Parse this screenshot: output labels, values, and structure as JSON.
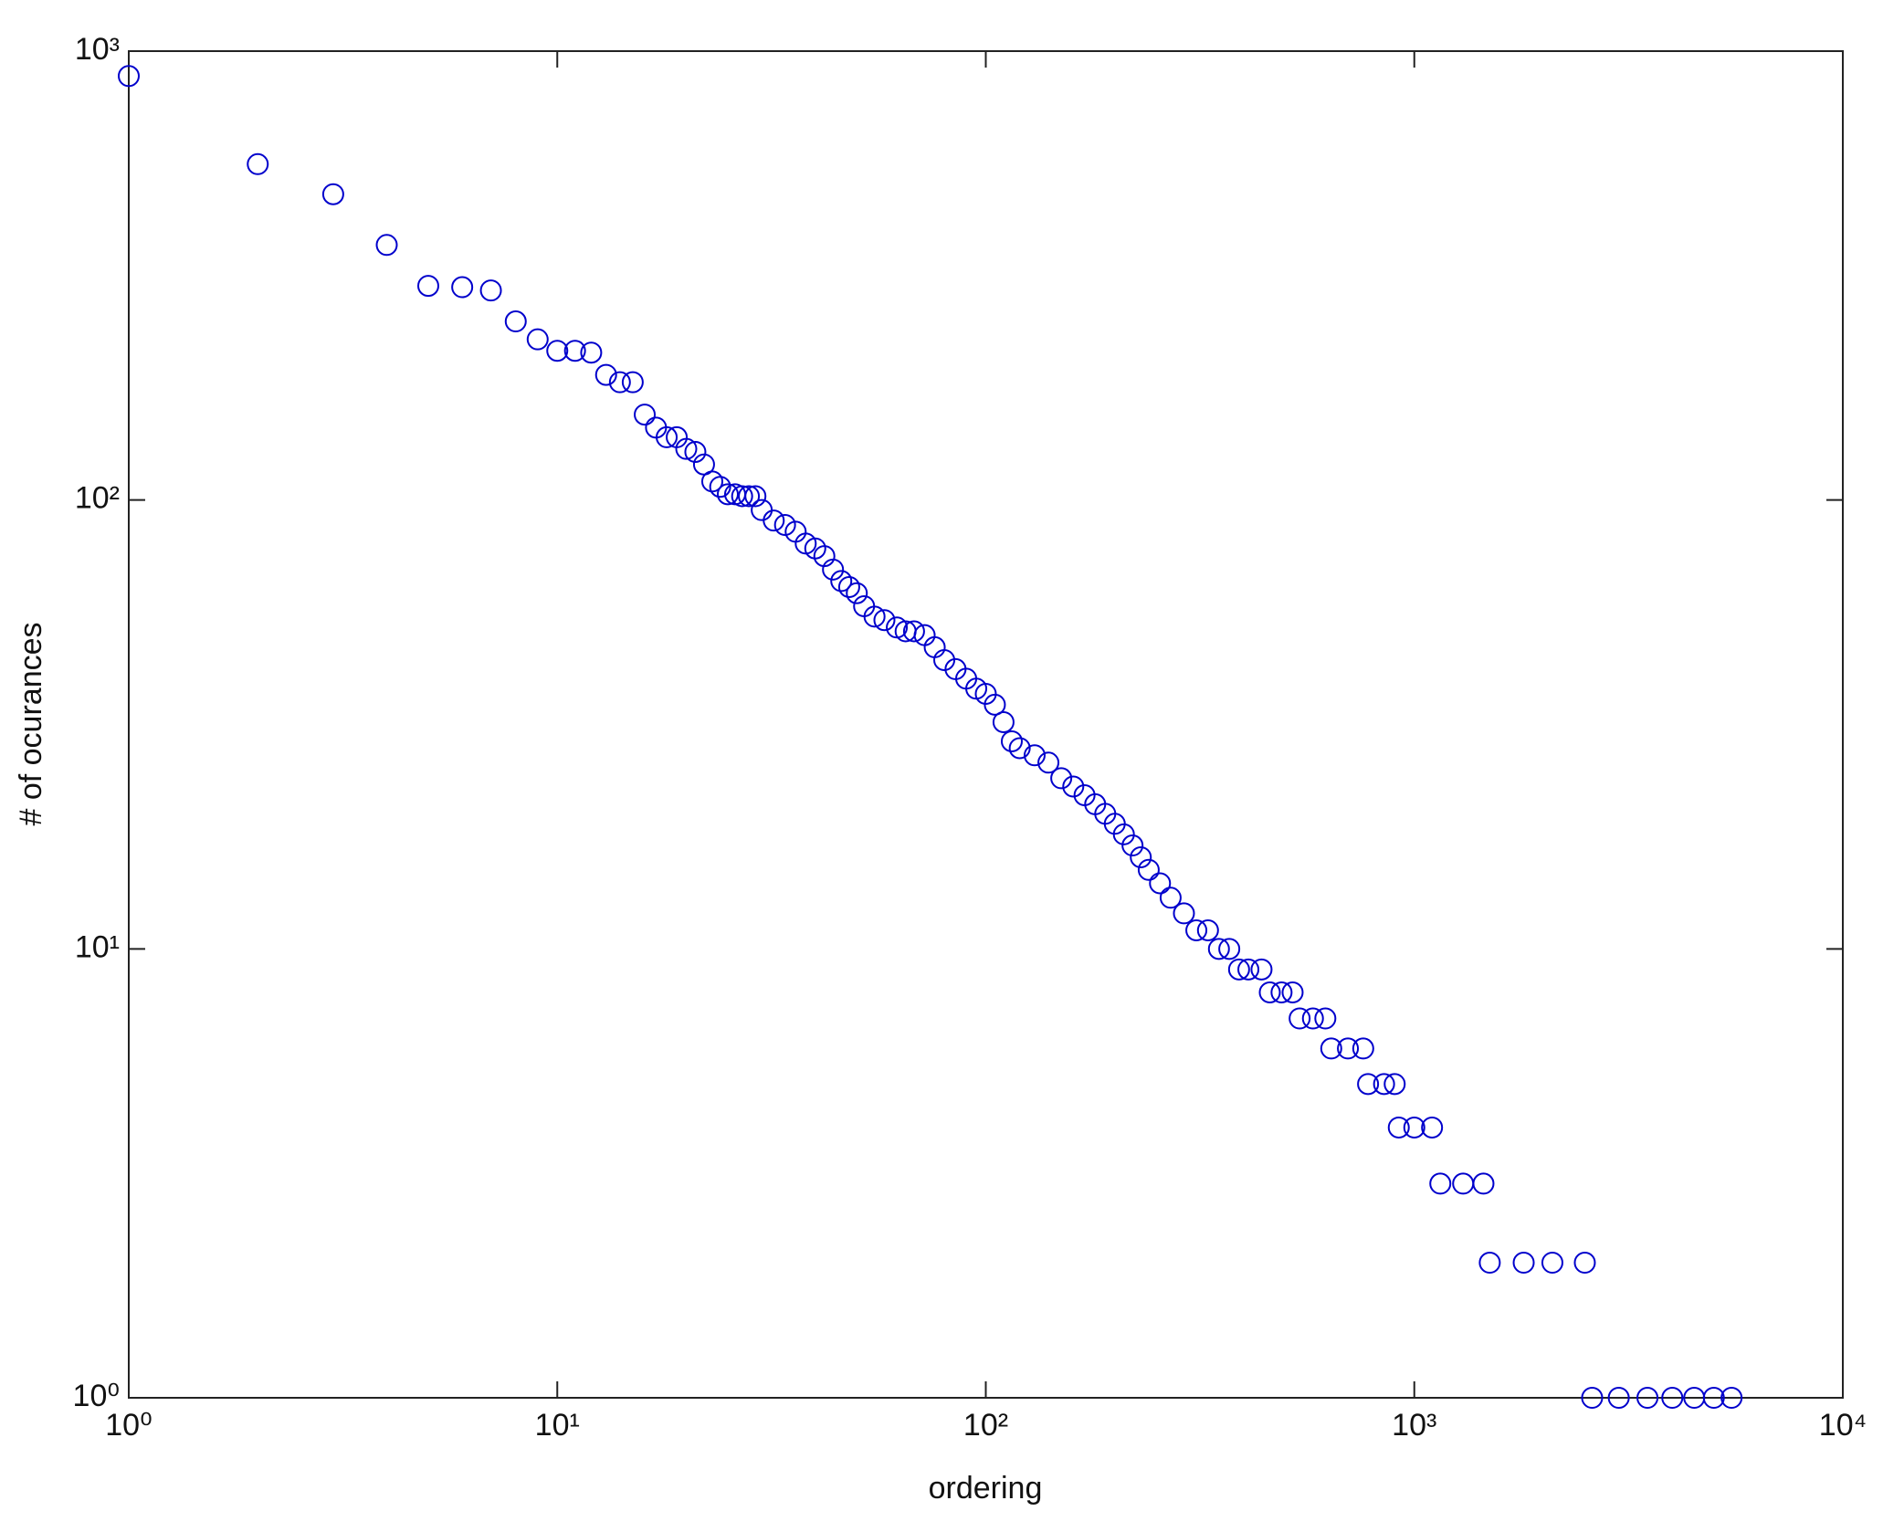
{
  "chart_data": {
    "type": "scatter",
    "xlabel": "ordering",
    "ylabel": "# of ocurances",
    "xscale": "log",
    "yscale": "log",
    "xlim": [
      1,
      10000
    ],
    "ylim": [
      1,
      1000
    ],
    "xticks": [
      {
        "value": 1,
        "label": "10⁰"
      },
      {
        "value": 10,
        "label": "10¹"
      },
      {
        "value": 100,
        "label": "10²"
      },
      {
        "value": 1000,
        "label": "10³"
      },
      {
        "value": 10000,
        "label": "10⁴"
      }
    ],
    "yticks": [
      {
        "value": 1,
        "label": "10⁰"
      },
      {
        "value": 10,
        "label": "10¹"
      },
      {
        "value": 100,
        "label": "10²"
      },
      {
        "value": 1000,
        "label": "10³"
      }
    ],
    "color": "#0000cc",
    "x": [
      1,
      2,
      3,
      4,
      5,
      6,
      7,
      8,
      9,
      10,
      11,
      12,
      13,
      14,
      15,
      16,
      17,
      18,
      19,
      20,
      21,
      22,
      23,
      24,
      25,
      26,
      27,
      28,
      29,
      30,
      32,
      34,
      36,
      38,
      40,
      42,
      44,
      46,
      48,
      50,
      52,
      55,
      58,
      62,
      65,
      68,
      72,
      76,
      80,
      85,
      90,
      95,
      100,
      105,
      110,
      115,
      120,
      130,
      140,
      150,
      160,
      170,
      180,
      190,
      200,
      210,
      220,
      230,
      240,
      255,
      270,
      290,
      310,
      330,
      350,
      370,
      390,
      410,
      440,
      460,
      490,
      520,
      540,
      580,
      620,
      640,
      700,
      760,
      780,
      850,
      900,
      920,
      1000,
      1100,
      1150,
      1300,
      1450,
      1500,
      1800,
      2100,
      2500,
      2600,
      3000,
      3500,
      4000,
      4500,
      5000,
      5500
    ],
    "y": [
      880,
      560,
      480,
      370,
      300,
      298,
      293,
      250,
      228,
      215,
      215,
      213,
      190,
      183,
      183,
      155,
      145,
      138,
      138,
      130,
      128,
      120,
      110,
      107,
      103,
      103,
      102,
      102,
      102,
      95,
      90,
      88,
      85,
      80,
      78,
      75,
      70,
      66,
      64,
      62,
      58,
      55,
      54,
      52,
      51,
      51,
      50,
      47,
      44,
      42,
      40,
      38,
      37,
      35,
      32,
      29,
      28,
      27,
      26,
      24,
      23,
      22,
      21,
      20,
      19,
      18,
      17,
      16,
      15,
      14,
      13,
      12,
      11,
      11,
      10,
      10,
      9,
      9,
      9,
      8,
      8,
      8,
      7,
      7,
      7,
      6,
      6,
      6,
      5,
      5,
      5,
      4,
      4,
      4,
      3,
      3,
      3,
      2,
      2,
      2,
      2,
      1,
      1,
      1,
      1,
      1,
      1,
      1
    ]
  }
}
